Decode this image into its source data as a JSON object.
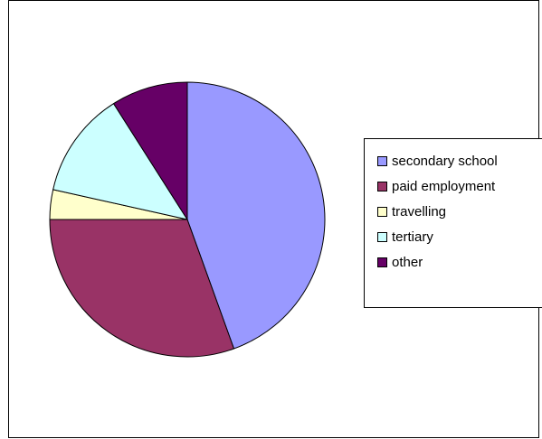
{
  "chart_data": {
    "type": "pie",
    "title": "",
    "categories": [
      "secondary school",
      "paid employment",
      "travelling",
      "tertiary",
      "other"
    ],
    "values": [
      44.5,
      30.5,
      3.5,
      12.5,
      9.0
    ],
    "colors": [
      "#9999ff",
      "#993366",
      "#ffffcc",
      "#ccffff",
      "#660066"
    ],
    "start_angle_deg": 0,
    "direction": "clockwise",
    "legend_position": "right"
  }
}
